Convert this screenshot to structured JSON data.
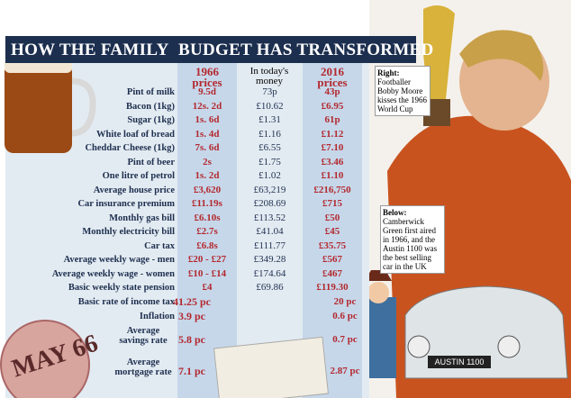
{
  "header": {
    "title_left": "HOW THE FAMILY",
    "title_right": "BUDGET HAS TRANSFORMED"
  },
  "columns": [
    "1966 prices",
    "In today's money",
    "2016 prices"
  ],
  "rows": [
    {
      "label": "Pint of milk",
      "y1966": "9.5d",
      "today": "73p",
      "y2016": "43p"
    },
    {
      "label": "Bacon (1kg)",
      "y1966": "12s. 2d",
      "today": "£10.62",
      "y2016": "£6.95"
    },
    {
      "label": "Sugar (1kg)",
      "y1966": "1s. 6d",
      "today": "£1.31",
      "y2016": "61p"
    },
    {
      "label": "White loaf of bread",
      "y1966": "1s. 4d",
      "today": "£1.16",
      "y2016": "£1.12"
    },
    {
      "label": "Cheddar Cheese (1kg)",
      "y1966": "7s. 6d",
      "today": "£6.55",
      "y2016": "£7.10"
    },
    {
      "label": "Pint of beer",
      "y1966": "2s",
      "today": "£1.75",
      "y2016": "£3.46"
    },
    {
      "label": "One litre of petrol",
      "y1966": "1s. 2d",
      "today": "£1.02",
      "y2016": "£1.10"
    },
    {
      "label": "Average house price",
      "y1966": "£3,620",
      "today": "£63,219",
      "y2016": "£216,750"
    },
    {
      "label": "Car insurance premium",
      "y1966": "£11.19s",
      "today": "£208.69",
      "y2016": "£715"
    },
    {
      "label": "Monthly gas bill",
      "y1966": "£6.10s",
      "today": "£113.52",
      "y2016": "£50"
    },
    {
      "label": "Monthly electricity bill",
      "y1966": "£2.7s",
      "today": "£41.04",
      "y2016": "£45"
    },
    {
      "label": "Car tax",
      "y1966": "£6.8s",
      "today": "£111.77",
      "y2016": "£35.75"
    },
    {
      "label": "Average weekly wage - men",
      "y1966": "£20 - £27",
      "today": "£349.28",
      "y2016": "£567"
    },
    {
      "label": "Average weekly wage - women",
      "y1966": "£10 - £14",
      "today": "£174.64",
      "y2016": "£467"
    },
    {
      "label": "Basic weekly state pension",
      "y1966": "£4",
      "today": "£69.86",
      "y2016": "£119.30"
    },
    {
      "label": "Basic rate of income tax",
      "y1966": "41.25 pc",
      "y2016": "20 pc"
    },
    {
      "label": "Inflation",
      "y1966": "3.9 pc",
      "y2016": "0.6 pc"
    },
    {
      "label": "Average savings rate",
      "y1966": "5.8 pc",
      "y2016": "0.7 pc"
    },
    {
      "label": "Average mortgage rate",
      "y1966": "7.1 pc",
      "y2016": "2.87 pc"
    }
  ],
  "captions": [
    {
      "heading": "Right:",
      "text": "Footballer Bobby Moore kisses the 1966 World Cup"
    },
    {
      "heading": "Below:",
      "text": "Camberwick Green first aired in 1966, and the Austin 1100 was the best selling car in the UK"
    }
  ],
  "tax_disc": "MAY 66",
  "number_plate": "AUSTIN 1100"
}
